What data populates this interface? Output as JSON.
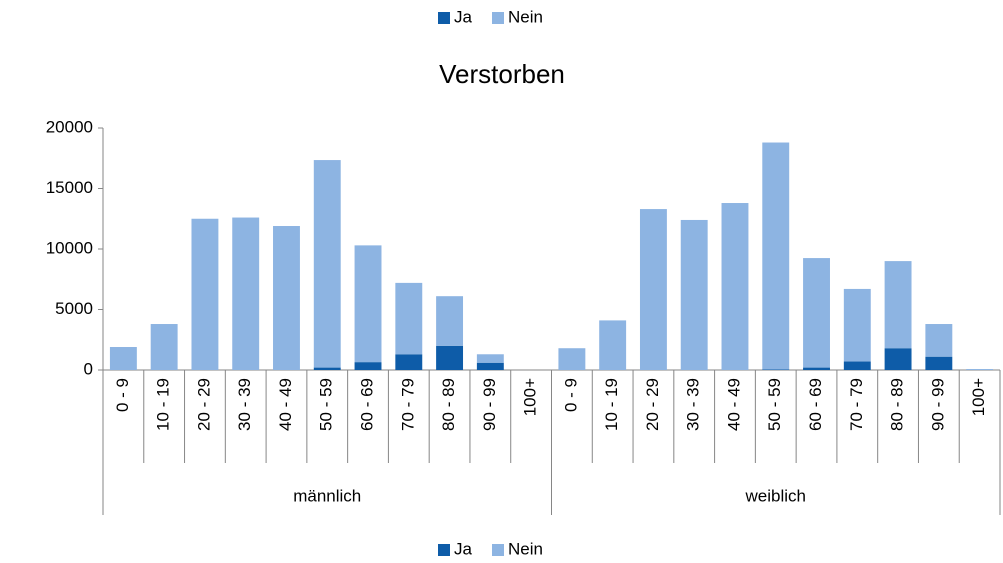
{
  "chart_data": {
    "type": "stacked_bar",
    "title": "Verstorben",
    "groups": [
      {
        "label": "männlich",
        "categories": [
          "0 - 9",
          "10 - 19",
          "20 - 29",
          "30 - 39",
          "40 - 49",
          "50 - 59",
          "60 - 69",
          "70 - 79",
          "80 - 89",
          "90 - 99",
          "100+"
        ]
      },
      {
        "label": "weiblich",
        "categories": [
          "0 - 9",
          "10 - 19",
          "20 - 29",
          "30 - 39",
          "40 - 49",
          "50 - 59",
          "60 - 69",
          "70 - 79",
          "80 - 89",
          "90 - 99",
          "100+"
        ]
      }
    ],
    "series": [
      {
        "name": "Ja",
        "color": "#0e5ca8",
        "values": [
          0,
          0,
          0,
          0,
          0,
          200,
          650,
          1300,
          2000,
          600,
          0,
          0,
          0,
          0,
          0,
          0,
          50,
          200,
          700,
          1800,
          1100,
          0
        ]
      },
      {
        "name": "Nein",
        "color": "#8db4e2",
        "values": [
          1900,
          3800,
          12500,
          12600,
          11900,
          17150,
          9650,
          5900,
          4100,
          700,
          0,
          1800,
          4100,
          13300,
          12400,
          13800,
          18750,
          9050,
          6000,
          7200,
          2700,
          80
        ]
      }
    ],
    "ylim": [
      0,
      20000
    ],
    "yticks": [
      0,
      5000,
      10000,
      15000,
      20000
    ]
  }
}
